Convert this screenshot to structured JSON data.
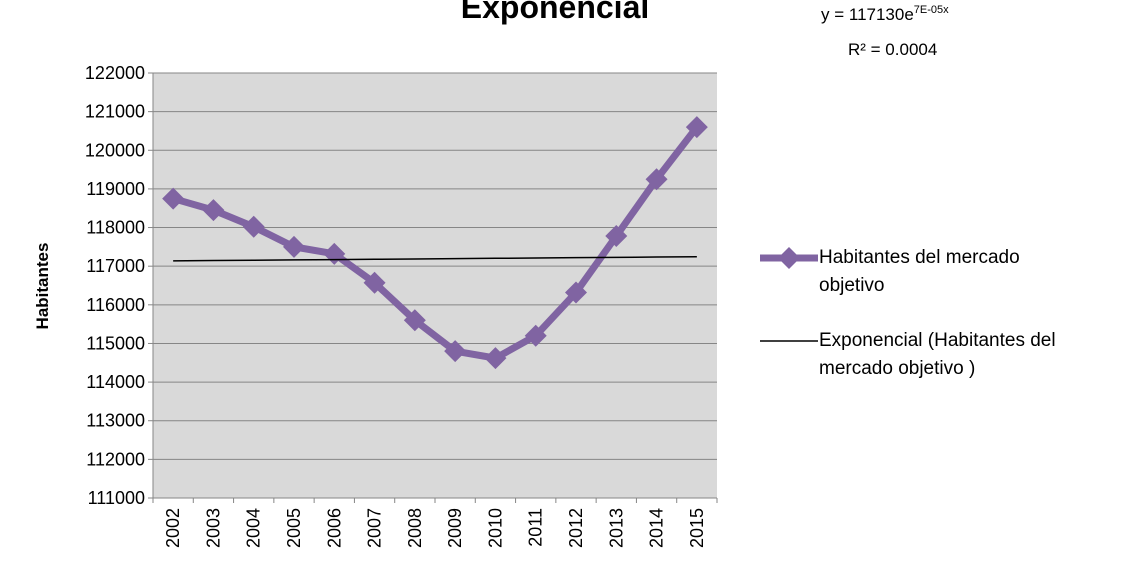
{
  "chart_data": {
    "type": "line",
    "title": "Exponencial",
    "equation": {
      "base": "y = 117130e",
      "exponent": "7E-05x"
    },
    "r_squared": "R² = 0.0004",
    "y_label": "Habitantes",
    "categories": [
      "2002",
      "2003",
      "2004",
      "2005",
      "2006",
      "2007",
      "2008",
      "2009",
      "2010",
      "2011",
      "2012",
      "2013",
      "2014",
      "2015"
    ],
    "series": [
      {
        "name": "Habitantes del mercado objetivo",
        "color": "#8064a2",
        "values": [
          118750,
          118450,
          118020,
          117500,
          117320,
          116570,
          115600,
          114800,
          114620,
          115200,
          116320,
          117780,
          119250,
          120600
        ]
      },
      {
        "name": "Exponencial (Habitantes del mercado objetivo )",
        "color": "#000000",
        "values": [
          117138,
          117146,
          117154,
          117163,
          117171,
          117179,
          117187,
          117195,
          117204,
          117212,
          117220,
          117228,
          117237,
          117245
        ]
      }
    ],
    "ylim": [
      111000,
      122000
    ],
    "yticks": [
      111000,
      112000,
      113000,
      114000,
      115000,
      116000,
      117000,
      118000,
      119000,
      120000,
      121000,
      122000
    ],
    "grid": true
  }
}
